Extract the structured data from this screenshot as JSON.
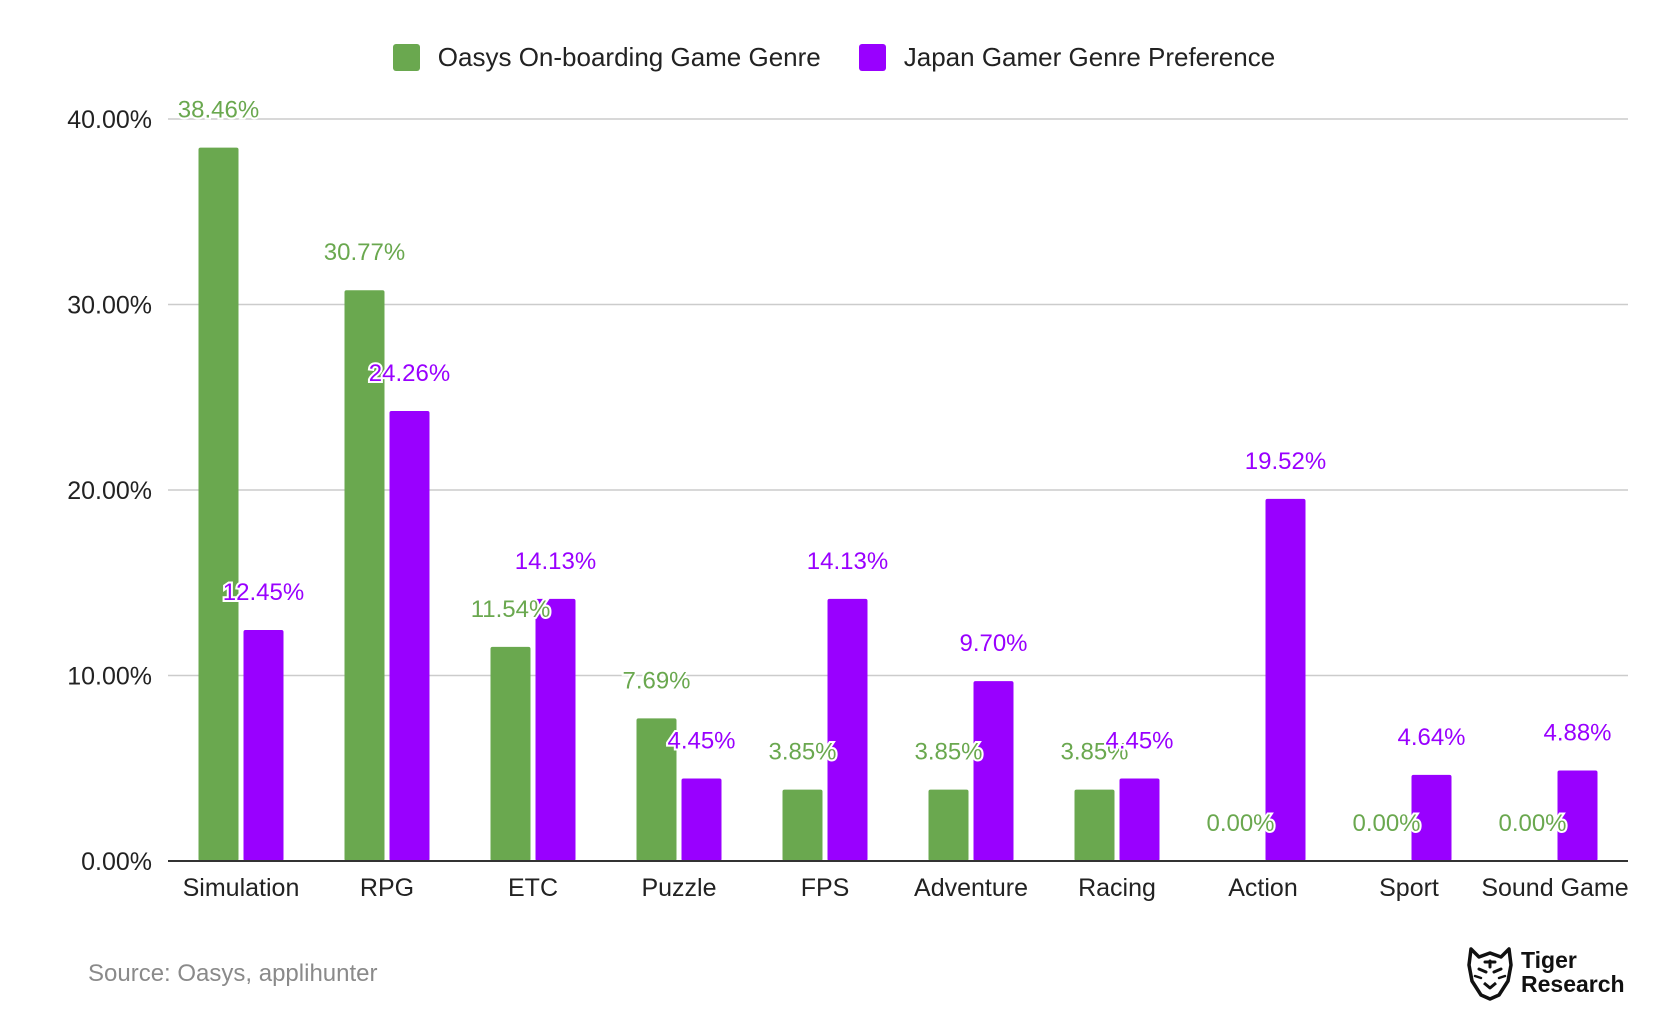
{
  "legend": [
    {
      "name": "Oasys On-boarding Game Genre",
      "color": "#6aa84f"
    },
    {
      "name": "Japan Gamer Genre Preference",
      "color": "#9900ff"
    }
  ],
  "source": "Source: Oasys, applihunter",
  "logo": {
    "line1": "Tiger",
    "line2": "Research",
    "icon": "tiger-head-icon"
  },
  "chart_data": {
    "type": "bar",
    "categories": [
      "Simulation",
      "RPG",
      "ETC",
      "Puzzle",
      "FPS",
      "Adventure",
      "Racing",
      "Action",
      "Sport",
      "Sound Game"
    ],
    "series": [
      {
        "name": "Oasys On-boarding Game Genre",
        "color": "#6aa84f",
        "label_color": "#6aa84f",
        "values": [
          38.46,
          30.77,
          11.54,
          7.69,
          3.85,
          3.85,
          3.85,
          0.0,
          0.0,
          0.0
        ],
        "labels": [
          "38.46%",
          "30.77%",
          "11.54%",
          "7.69%",
          "3.85%",
          "3.85%",
          "3.85%",
          "0.00%",
          "0.00%",
          "0.00%"
        ]
      },
      {
        "name": "Japan Gamer Genre Preference",
        "color": "#9900ff",
        "label_color": "#9900ff",
        "values": [
          12.45,
          24.26,
          14.13,
          4.45,
          14.13,
          9.7,
          4.45,
          19.52,
          4.64,
          4.88
        ],
        "labels": [
          "12.45%",
          "24.26%",
          "14.13%",
          "4.45%",
          "14.13%",
          "9.70%",
          "4.45%",
          "19.52%",
          "4.64%",
          "4.88%"
        ]
      }
    ],
    "y_ticks": [
      "0.00%",
      "10.00%",
      "20.00%",
      "30.00%",
      "40.00%"
    ],
    "y_tick_values": [
      0,
      10,
      20,
      30,
      40
    ],
    "ylim": [
      0,
      40
    ],
    "grid": true,
    "legend_position": "top",
    "title": "",
    "xlabel": "",
    "ylabel": ""
  }
}
